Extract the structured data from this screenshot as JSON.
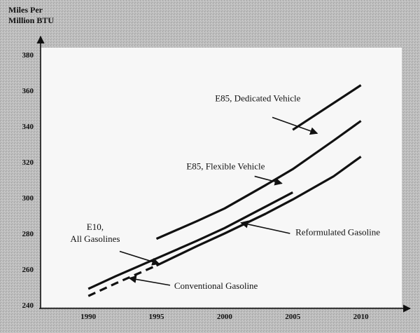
{
  "chart_data": {
    "type": "line",
    "title": "",
    "xlabel": "",
    "ylabel": "Miles Per Million BTU",
    "ylabel_lines": [
      "Miles Per",
      "Million BTU"
    ],
    "xlim": [
      1986.5,
      2013
    ],
    "ylim": [
      238,
      384
    ],
    "x_ticks": [
      1990,
      1995,
      2000,
      2005,
      2010
    ],
    "y_ticks": [
      240,
      260,
      280,
      300,
      320,
      340,
      360,
      380
    ],
    "grid": false,
    "legend": "none",
    "series": [
      {
        "name": "E85, Dedicated Vehicle",
        "dash": "solid",
        "x": [
          2005,
          2010
        ],
        "y": [
          338,
          363
        ]
      },
      {
        "name": "E85, Flexible Vehicle",
        "dash": "solid",
        "x": [
          1995,
          1998,
          2000,
          2003,
          2005,
          2008,
          2010
        ],
        "y": [
          277,
          287,
          294,
          307,
          316,
          332,
          343
        ]
      },
      {
        "name": "E10, All Gasolines",
        "dash": "solid",
        "x": [
          1990,
          1992,
          1995,
          1998,
          2000,
          2003,
          2005
        ],
        "y": [
          249,
          256,
          266,
          276,
          283,
          295,
          303
        ]
      },
      {
        "name": "Reformulated Gasoline",
        "dash": "solid",
        "x": [
          1995,
          1998,
          2000,
          2003,
          2005,
          2008,
          2010
        ],
        "y": [
          262,
          273,
          280,
          291,
          299,
          312,
          323
        ]
      },
      {
        "name": "Conventional Gasoline",
        "dash": "dashed",
        "x": [
          1990,
          1992,
          1995
        ],
        "y": [
          245,
          252,
          262
        ]
      }
    ],
    "annotations": [
      {
        "lines": [
          "E85, Dedicated Vehicle"
        ],
        "anchor": "start",
        "text_at": [
          1999.3,
          354
        ],
        "arrow_from": [
          2003.5,
          345
        ],
        "arrow_to": [
          2006.8,
          336
        ]
      },
      {
        "lines": [
          "E85, Flexible Vehicle"
        ],
        "anchor": "start",
        "text_at": [
          1997.2,
          316
        ],
        "arrow_from": [
          2002.2,
          312
        ],
        "arrow_to": [
          2004.2,
          308
        ]
      },
      {
        "lines": [
          "E10,",
          "All Gasolines"
        ],
        "anchor": "middle",
        "text_at": [
          1990.5,
          282
        ],
        "arrow_from": [
          1992.3,
          270
        ],
        "arrow_to": [
          1995.2,
          263
        ]
      },
      {
        "lines": [
          "Reformulated Gasoline"
        ],
        "anchor": "start",
        "text_at": [
          2005.2,
          279
        ],
        "arrow_from": [
          2004.8,
          280
        ],
        "arrow_to": [
          2001.2,
          286
        ]
      },
      {
        "lines": [
          "Conventional Gasoline"
        ],
        "anchor": "start",
        "text_at": [
          1996.3,
          249
        ],
        "arrow_from": [
          1996,
          251
        ],
        "arrow_to": [
          1993,
          255
        ]
      }
    ]
  }
}
